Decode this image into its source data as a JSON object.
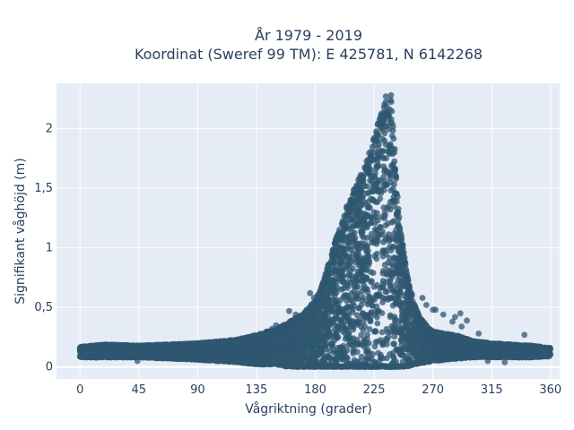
{
  "chart_data": {
    "type": "scatter",
    "title": "År 1979 - 2019",
    "subtitle": "Koordinat (Sweref 99 TM): E 425781, N 6142268",
    "xlabel": "Vågriktning (grader)",
    "ylabel": "Signifikant våghöjd (m)",
    "xlim": [
      -18,
      367
    ],
    "ylim": [
      -0.1,
      2.38
    ],
    "xticks": [
      0,
      45,
      90,
      135,
      180,
      225,
      270,
      315,
      360
    ],
    "xtick_labels": [
      "0",
      "45",
      "90",
      "135",
      "180",
      "225",
      "270",
      "315",
      "360"
    ],
    "yticks": [
      0,
      0.5,
      1,
      1.5,
      2
    ],
    "ytick_labels": [
      "0",
      "0,5",
      "1",
      "1,5",
      "2"
    ],
    "grid": true,
    "legend": "none",
    "marker_color": "#2f5770",
    "background_color": "#e5ecf6",
    "envelope": {
      "x": [
        0,
        20,
        45,
        90,
        120,
        135,
        150,
        160,
        170,
        175,
        180,
        185,
        190,
        195,
        200,
        205,
        210,
        215,
        220,
        225,
        228,
        230,
        233,
        235,
        238,
        240,
        242,
        245,
        250,
        255,
        260,
        265,
        270,
        280,
        290,
        300,
        315,
        330,
        345,
        360
      ],
      "y_max": [
        0.17,
        0.19,
        0.18,
        0.2,
        0.23,
        0.27,
        0.32,
        0.38,
        0.44,
        0.5,
        0.56,
        0.68,
        0.86,
        1.05,
        1.22,
        1.38,
        1.5,
        1.62,
        1.76,
        1.95,
        2.05,
        2.12,
        2.22,
        2.27,
        2.25,
        2.0,
        1.6,
        1.2,
        0.8,
        0.55,
        0.42,
        0.35,
        0.3,
        0.28,
        0.26,
        0.22,
        0.2,
        0.19,
        0.18,
        0.16
      ],
      "y_min": [
        0.08,
        0.08,
        0.08,
        0.06,
        0.04,
        0.02,
        0.02,
        0.0,
        0.0,
        0.0,
        0.0,
        0.0,
        0.0,
        0.0,
        0.0,
        0.0,
        0.0,
        0.0,
        0.0,
        0.0,
        0.0,
        0.0,
        0.0,
        0.0,
        0.0,
        0.0,
        0.0,
        0.0,
        0.0,
        0.02,
        0.03,
        0.04,
        0.05,
        0.06,
        0.07,
        0.08,
        0.08,
        0.08,
        0.08,
        0.09
      ]
    },
    "outliers": [
      {
        "x": 176,
        "y": 0.62
      },
      {
        "x": 179,
        "y": 0.58
      },
      {
        "x": 165,
        "y": 0.44
      },
      {
        "x": 160,
        "y": 0.47
      },
      {
        "x": 150,
        "y": 0.35
      },
      {
        "x": 147,
        "y": 0.32
      },
      {
        "x": 247,
        "y": 0.78
      },
      {
        "x": 254,
        "y": 0.61
      },
      {
        "x": 262,
        "y": 0.58
      },
      {
        "x": 265,
        "y": 0.52
      },
      {
        "x": 270,
        "y": 0.48
      },
      {
        "x": 272,
        "y": 0.48
      },
      {
        "x": 278,
        "y": 0.44
      },
      {
        "x": 285,
        "y": 0.38
      },
      {
        "x": 287,
        "y": 0.42
      },
      {
        "x": 291,
        "y": 0.45
      },
      {
        "x": 296,
        "y": 0.39
      },
      {
        "x": 292,
        "y": 0.34
      },
      {
        "x": 305,
        "y": 0.28
      },
      {
        "x": 340,
        "y": 0.27
      },
      {
        "x": 325,
        "y": 0.04
      },
      {
        "x": 312,
        "y": 0.05
      },
      {
        "x": 44,
        "y": 0.05
      },
      {
        "x": 104,
        "y": 0.05
      },
      {
        "x": 238,
        "y": 2.28
      },
      {
        "x": 234,
        "y": 2.27
      }
    ]
  }
}
